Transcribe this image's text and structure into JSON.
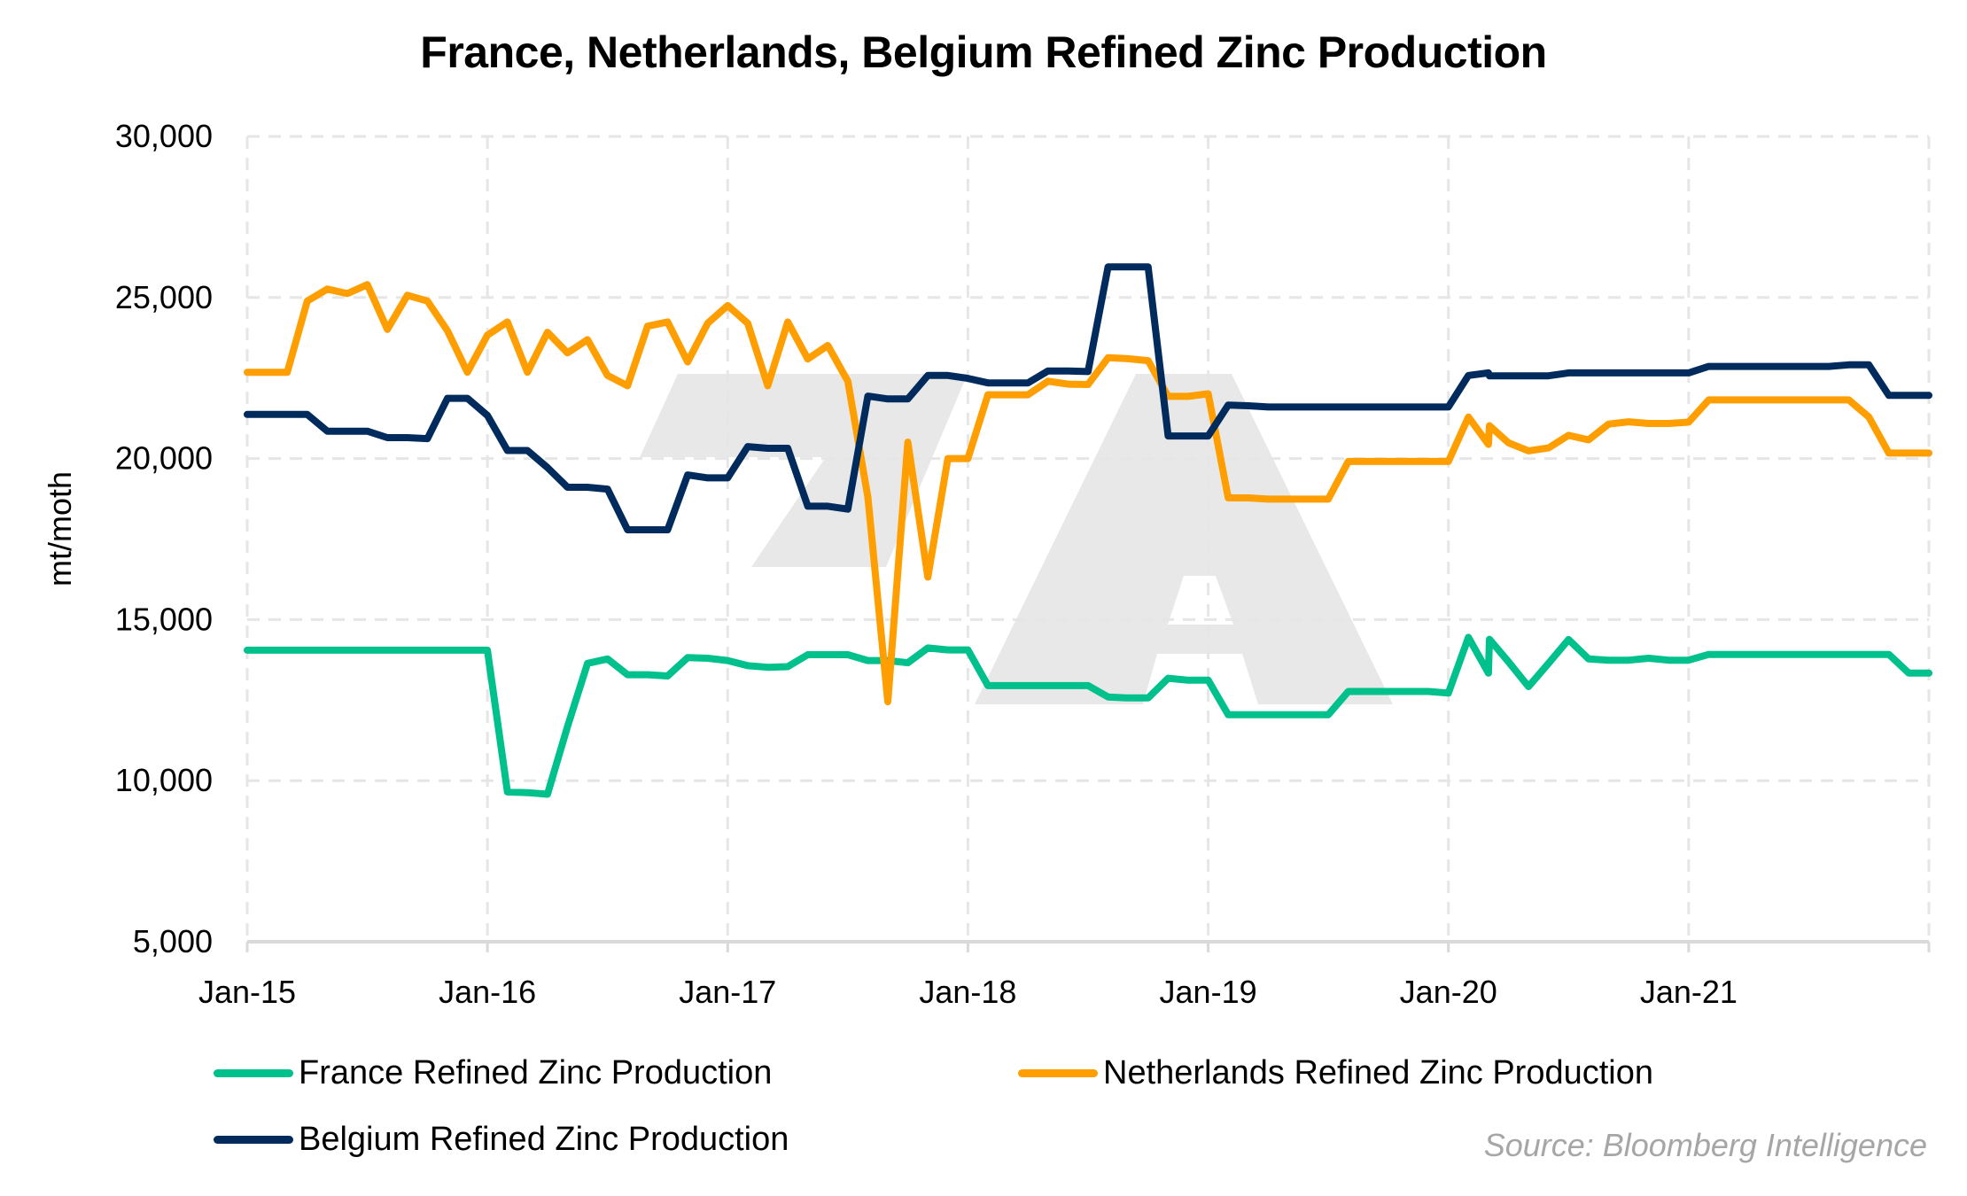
{
  "chart_data": {
    "type": "line",
    "title": "France, Netherlands, Belgium Refined Zinc Production",
    "xlabel": "",
    "ylabel": "mt/moth",
    "ylim": [
      5000,
      30000
    ],
    "yticks": [
      5000,
      10000,
      15000,
      20000,
      25000,
      30000
    ],
    "ytick_labels": [
      "5,000",
      "10,000",
      "15,000",
      "20,000",
      "25,000",
      "30,000"
    ],
    "x_unit": "months since Jan-15",
    "xlim": [
      0,
      84
    ],
    "xticks": [
      0,
      12,
      24,
      36,
      48,
      60,
      72,
      84
    ],
    "xtick_labels": [
      "Jan-15",
      "Jan-16",
      "Jan-17",
      "Jan-18",
      "Jan-19",
      "Jan-20",
      "Jan-21",
      ""
    ],
    "grid": true,
    "legend_position": "bottom",
    "series": [
      {
        "name": "France Refined Zinc Production",
        "color": "#00c08b",
        "x": [
          0,
          1,
          2,
          3,
          4,
          5,
          6,
          7,
          8,
          9,
          10,
          11,
          12,
          13,
          14,
          15,
          16,
          17,
          18,
          19,
          20,
          21,
          22,
          23,
          24,
          25,
          26,
          27,
          28,
          29,
          30,
          31,
          32,
          33,
          34,
          35,
          36,
          37,
          38,
          39,
          40,
          41,
          42,
          43,
          44,
          45,
          46,
          47,
          48,
          49,
          50,
          51,
          52,
          53,
          54,
          55,
          56,
          57,
          58,
          59,
          60,
          61,
          62,
          62.05,
          63,
          64,
          65,
          66,
          67,
          68,
          69,
          70,
          71,
          72,
          73,
          74,
          75,
          76,
          77,
          78,
          79,
          80,
          81,
          82,
          83,
          84
        ],
        "values": [
          14050,
          14050,
          14050,
          14050,
          14050,
          14050,
          14050,
          14050,
          14050,
          14050,
          14050,
          14050,
          14050,
          9650,
          9630,
          9580,
          11680,
          13640,
          13780,
          13290,
          13290,
          13250,
          13820,
          13800,
          13730,
          13570,
          13520,
          13540,
          13910,
          13910,
          13910,
          13730,
          13730,
          13660,
          14120,
          14060,
          14060,
          12950,
          12950,
          12950,
          12950,
          12950,
          12950,
          12600,
          12570,
          12570,
          13180,
          13120,
          13120,
          12050,
          12050,
          12050,
          12050,
          12050,
          12050,
          12770,
          12770,
          12770,
          12770,
          12770,
          12720,
          14450,
          13340,
          14390,
          13690,
          12920,
          13640,
          14380,
          13780,
          13740,
          13740,
          13800,
          13740,
          13740,
          13920,
          13920,
          13920,
          13920,
          13920,
          13920,
          13920,
          13920,
          13920,
          13920,
          13340,
          13340
        ]
      },
      {
        "name": "Netherlands Refined Zinc Production",
        "color": "#ff9e00",
        "x": [
          0,
          1,
          2,
          3,
          4,
          5,
          6,
          7,
          8,
          9,
          10,
          11,
          12,
          13,
          14,
          15,
          16,
          17,
          18,
          19,
          20,
          21,
          22,
          23,
          24,
          25,
          26,
          27,
          28,
          29,
          30,
          31,
          32,
          33,
          34,
          35,
          36,
          37,
          38,
          39,
          40,
          41,
          42,
          43,
          44,
          45,
          46,
          47,
          48,
          49,
          50,
          51,
          52,
          53,
          54,
          55,
          56,
          57,
          58,
          59,
          60,
          61,
          62,
          62.05,
          63,
          64,
          65,
          66,
          67,
          68,
          69,
          70,
          71,
          72,
          73,
          74,
          75,
          76,
          77,
          78,
          79,
          80,
          81,
          82,
          83,
          84
        ],
        "values": [
          22680,
          22680,
          22680,
          24890,
          25260,
          25120,
          25400,
          24010,
          25070,
          24890,
          23970,
          22680,
          23830,
          24240,
          22680,
          23920,
          23280,
          23690,
          22580,
          22260,
          24110,
          24240,
          23000,
          24200,
          24750,
          24200,
          22260,
          24240,
          23090,
          23510,
          22400,
          18800,
          12450,
          20510,
          16320,
          20000,
          20000,
          21980,
          21980,
          21980,
          22400,
          22310,
          22300,
          23130,
          23100,
          23040,
          21930,
          21930,
          22010,
          18780,
          18780,
          18740,
          18740,
          18740,
          18740,
          19910,
          19910,
          19910,
          19910,
          19910,
          19910,
          21290,
          20440,
          21020,
          20490,
          20240,
          20330,
          20720,
          20580,
          21070,
          21140,
          21090,
          21090,
          21130,
          21820,
          21820,
          21820,
          21820,
          21820,
          21820,
          21820,
          21820,
          21290,
          20170,
          20170,
          20170
        ]
      },
      {
        "name": "Belgium Refined Zinc Production",
        "color": "#002b5c",
        "x": [
          0,
          1,
          2,
          3,
          4,
          5,
          6,
          7,
          8,
          9,
          10,
          11,
          12,
          13,
          14,
          15,
          16,
          17,
          18,
          19,
          20,
          21,
          22,
          23,
          24,
          25,
          26,
          27,
          28,
          29,
          30,
          31,
          32,
          33,
          34,
          35,
          36,
          37,
          38,
          39,
          40,
          41,
          42,
          43,
          44,
          45,
          46,
          47,
          48,
          49,
          50,
          51,
          52,
          53,
          54,
          55,
          56,
          57,
          58,
          59,
          60,
          61,
          62,
          62.05,
          63,
          64,
          65,
          66,
          67,
          68,
          69,
          70,
          71,
          72,
          73,
          74,
          75,
          76,
          77,
          78,
          79,
          80,
          81,
          82,
          83,
          84
        ],
        "values": [
          21370,
          21370,
          21370,
          21370,
          20850,
          20850,
          20850,
          20650,
          20650,
          20620,
          21870,
          21870,
          21340,
          20250,
          20250,
          19720,
          19110,
          19110,
          19050,
          17790,
          17790,
          17790,
          19490,
          19400,
          19400,
          20370,
          20320,
          20320,
          18520,
          18520,
          18430,
          21940,
          21850,
          21850,
          22580,
          22580,
          22490,
          22350,
          22350,
          22350,
          22720,
          22720,
          22700,
          25950,
          25950,
          25950,
          20700,
          20700,
          20700,
          21660,
          21640,
          21600,
          21600,
          21600,
          21600,
          21600,
          21600,
          21600,
          21600,
          21600,
          21600,
          22580,
          22660,
          22570,
          22570,
          22570,
          22570,
          22660,
          22660,
          22660,
          22660,
          22660,
          22660,
          22660,
          22860,
          22860,
          22860,
          22860,
          22860,
          22860,
          22860,
          22910,
          22910,
          21960,
          21960,
          21960
        ]
      }
    ],
    "source": "Source: Bloomberg Intelligence"
  }
}
